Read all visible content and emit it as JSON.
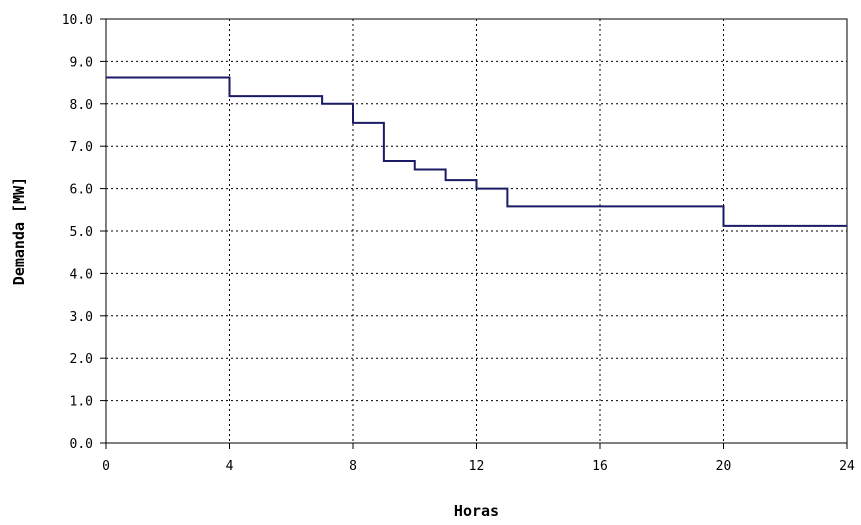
{
  "chart_data": {
    "type": "line",
    "step": true,
    "title": "",
    "xlabel": "Horas",
    "ylabel": "Demanda  [MW]",
    "xlim": [
      0,
      24
    ],
    "ylim": [
      0,
      10
    ],
    "x_ticks": [
      0,
      4,
      8,
      12,
      16,
      20,
      24
    ],
    "x_tick_labels": [
      "0",
      "4",
      "8",
      "12",
      "16",
      "20",
      "24"
    ],
    "y_ticks": [
      0,
      1,
      2,
      3,
      4,
      5,
      6,
      7,
      8,
      9,
      10
    ],
    "y_tick_labels": [
      "0.0",
      "1.0",
      "2.0",
      "3.0",
      "4.0",
      "5.0",
      "6.0",
      "7.0",
      "8.0",
      "9.0",
      "10.0"
    ],
    "grid": true,
    "line_color": "#1a1a66",
    "series": [
      {
        "x": [
          0,
          4,
          7,
          8,
          9,
          10,
          11,
          12,
          13,
          20,
          24
        ],
        "values": [
          8.62,
          8.18,
          8.0,
          7.55,
          6.65,
          6.45,
          6.2,
          6.0,
          5.58,
          5.12,
          5.12
        ]
      }
    ]
  }
}
